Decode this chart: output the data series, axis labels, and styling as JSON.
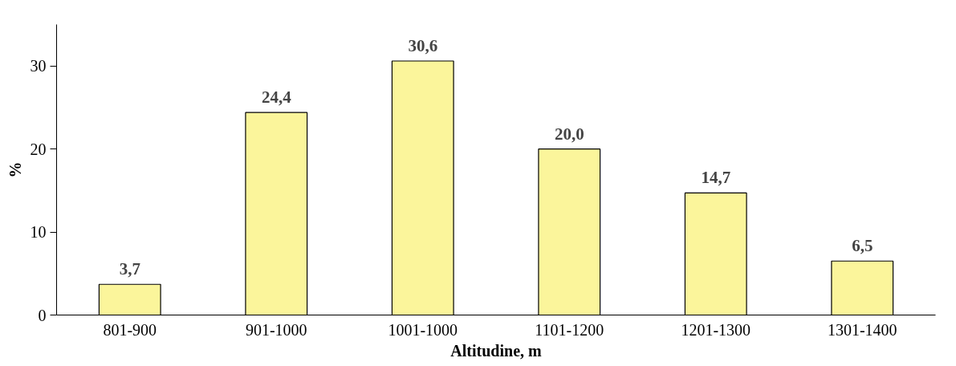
{
  "chart_data": {
    "type": "bar",
    "xlabel": "Altitudine, m",
    "ylabel": "%",
    "categories": [
      "801-900",
      "901-1000",
      "1001-1000",
      "1101-1200",
      "1201-1300",
      "1301-1400"
    ],
    "values": [
      3.7,
      24.4,
      30.6,
      20.0,
      14.7,
      6.5
    ],
    "value_labels": [
      "3,7",
      "24,4",
      "30,6",
      "20,0",
      "14,7",
      "6,5"
    ],
    "color": "#fbf59b",
    "ylim": [
      0,
      35
    ],
    "yticks": [
      0,
      10,
      20,
      30
    ],
    "grid": false
  }
}
